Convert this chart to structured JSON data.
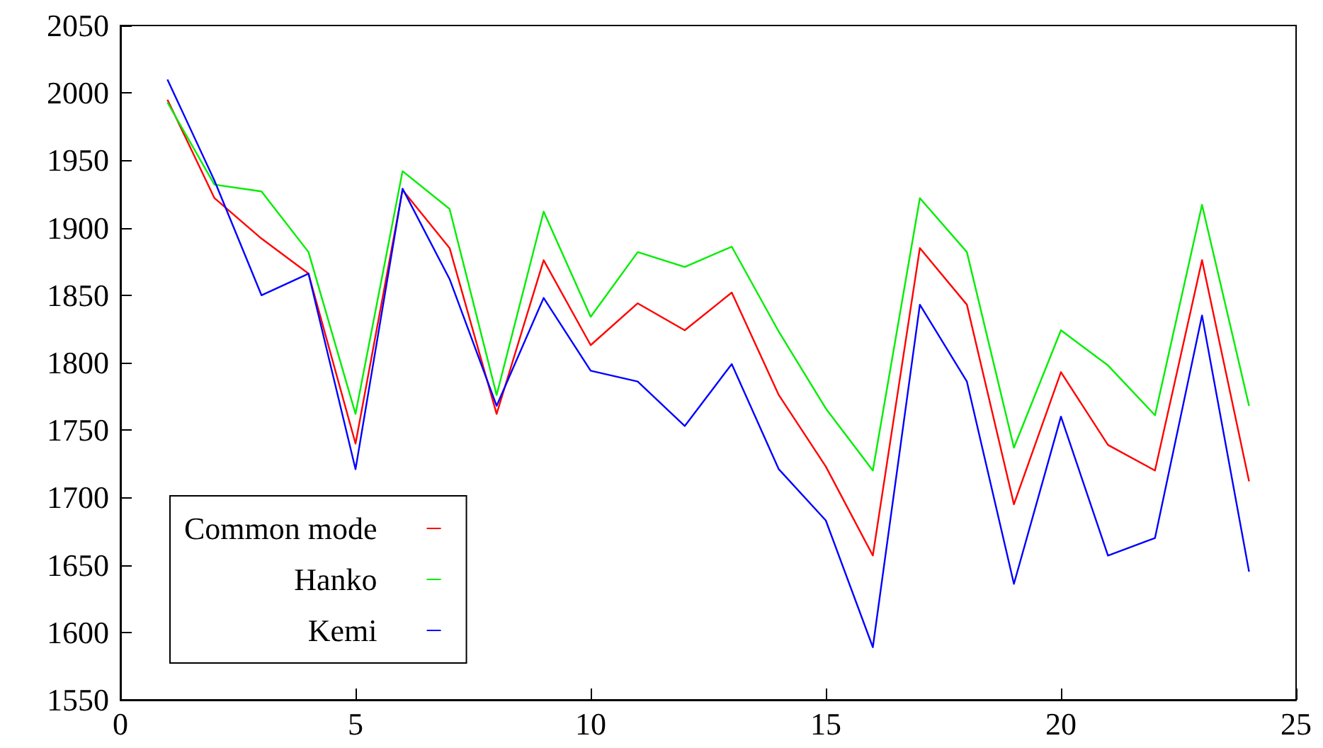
{
  "chart_data": {
    "type": "line",
    "x": [
      1,
      2,
      3,
      4,
      5,
      6,
      7,
      8,
      9,
      10,
      11,
      12,
      13,
      14,
      15,
      16,
      17,
      18,
      19,
      20,
      21,
      22,
      23,
      24
    ],
    "series": [
      {
        "name": "Common mode",
        "color": "#ff0000",
        "values": [
          1995,
          1922,
          1892,
          1866,
          1740,
          1928,
          1885,
          1762,
          1876,
          1813,
          1844,
          1824,
          1852,
          1776,
          1723,
          1657,
          1885,
          1843,
          1695,
          1793,
          1739,
          1720,
          1876,
          1712
        ]
      },
      {
        "name": "Hanko",
        "color": "#00ee00",
        "values": [
          1993,
          1932,
          1927,
          1882,
          1762,
          1942,
          1914,
          1776,
          1912,
          1834,
          1882,
          1871,
          1886,
          1823,
          1766,
          1720,
          1922,
          1882,
          1737,
          1824,
          1798,
          1761,
          1917,
          1768
        ]
      },
      {
        "name": "Kemi",
        "color": "#0000ff",
        "values": [
          2010,
          1935,
          1850,
          1866,
          1721,
          1929,
          1862,
          1768,
          1848,
          1794,
          1786,
          1753,
          1799,
          1721,
          1683,
          1589,
          1843,
          1786,
          1636,
          1760,
          1657,
          1670,
          1835,
          1645
        ]
      }
    ],
    "xlim": [
      0,
      25
    ],
    "xticks": [
      0,
      5,
      10,
      15,
      20,
      25
    ],
    "ylim": [
      1550,
      2050
    ],
    "yticks": [
      1550,
      1600,
      1650,
      1700,
      1750,
      1800,
      1850,
      1900,
      1950,
      2000,
      2050
    ],
    "grid": false,
    "legend": "bottom left",
    "marker": "none",
    "line_style": "solid"
  }
}
